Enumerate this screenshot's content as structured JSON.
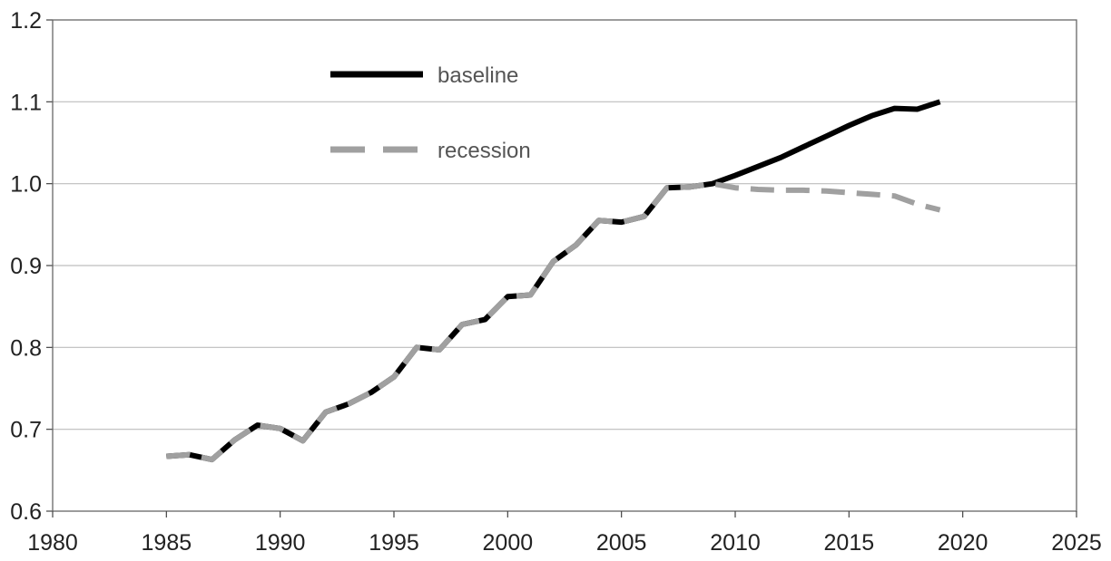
{
  "chart_data": {
    "type": "line",
    "title": "",
    "xlabel": "",
    "ylabel": "",
    "xlim": [
      1980,
      2025
    ],
    "ylim": [
      0.6,
      1.2
    ],
    "x_ticks": [
      "1980",
      "1985",
      "1990",
      "1995",
      "2000",
      "2005",
      "2010",
      "2015",
      "2020",
      "2025"
    ],
    "y_ticks": [
      "0.6",
      "0.7",
      "0.8",
      "0.9",
      "1.0",
      "1.1",
      "1.2"
    ],
    "grid": "horizontal",
    "legend_position": "top-left",
    "series": [
      {
        "name": "baseline",
        "color": "#000000",
        "style": "solid",
        "x": [
          1985,
          1986,
          1987,
          1988,
          1989,
          1990,
          1991,
          1992,
          1993,
          1994,
          1995,
          1996,
          1997,
          1998,
          1999,
          2000,
          2001,
          2002,
          2003,
          2004,
          2005,
          2006,
          2007,
          2008,
          2009,
          2010,
          2011,
          2012,
          2013,
          2014,
          2015,
          2016,
          2017,
          2018,
          2019
        ],
        "y": [
          0.667,
          0.669,
          0.663,
          0.687,
          0.705,
          0.701,
          0.686,
          0.721,
          0.731,
          0.745,
          0.764,
          0.8,
          0.797,
          0.828,
          0.834,
          0.862,
          0.864,
          0.905,
          0.925,
          0.955,
          0.953,
          0.96,
          0.995,
          0.996,
          1.0,
          1.01,
          1.021,
          1.032,
          1.045,
          1.058,
          1.071,
          1.083,
          1.092,
          1.091,
          1.1
        ]
      },
      {
        "name": "recession",
        "color": "#a0a0a0",
        "style": "dashed",
        "x": [
          1985,
          1986,
          1987,
          1988,
          1989,
          1990,
          1991,
          1992,
          1993,
          1994,
          1995,
          1996,
          1997,
          1998,
          1999,
          2000,
          2001,
          2002,
          2003,
          2004,
          2005,
          2006,
          2007,
          2008,
          2009,
          2010,
          2011,
          2012,
          2013,
          2014,
          2015,
          2016,
          2017,
          2018,
          2019
        ],
        "y": [
          0.667,
          0.669,
          0.663,
          0.687,
          0.705,
          0.701,
          0.686,
          0.721,
          0.731,
          0.745,
          0.764,
          0.8,
          0.797,
          0.828,
          0.834,
          0.862,
          0.864,
          0.905,
          0.925,
          0.955,
          0.953,
          0.96,
          0.995,
          0.996,
          1.0,
          0.995,
          0.993,
          0.992,
          0.992,
          0.991,
          0.989,
          0.987,
          0.985,
          0.975,
          0.968
        ]
      }
    ]
  }
}
